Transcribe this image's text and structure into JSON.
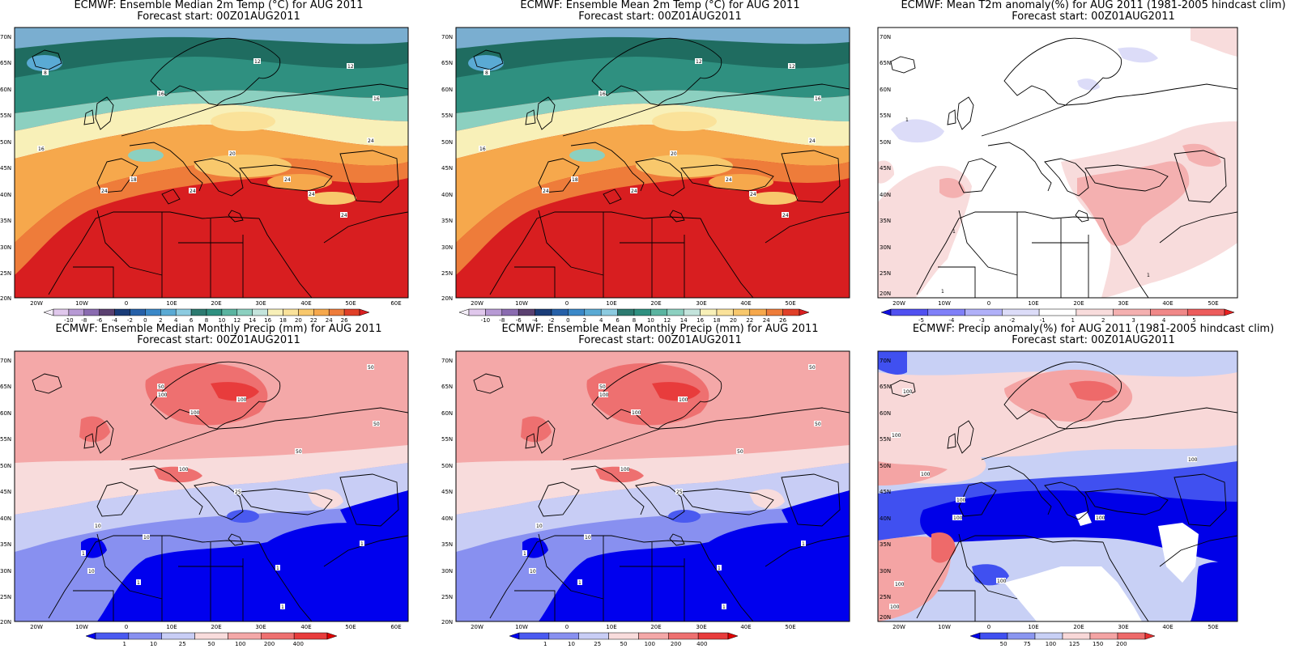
{
  "colors": {
    "temp_scale": [
      "#f4eef8",
      "#e0c8ec",
      "#b79ad4",
      "#8a6bb0",
      "#5a4070",
      "#1a3c78",
      "#2660a8",
      "#3a88c8",
      "#5aaad4",
      "#8ccbe0",
      "#2c7a70",
      "#2f9080",
      "#5ab4a0",
      "#8cd0c0",
      "#c4e4dc",
      "#f8f0b8",
      "#fae29a",
      "#f8c86c",
      "#f6a84c",
      "#ee7c3a",
      "#e04028",
      "#d81e20"
    ],
    "temp_anom_scale": [
      "#1010e0",
      "#5050f0",
      "#8080f8",
      "#b0b0f8",
      "#dcdcf8",
      "#ffffff",
      "#f8dcdc",
      "#f4b0b0",
      "#f08888",
      "#ec5c5c",
      "#e82020"
    ],
    "precip_scale": [
      "#0000ee",
      "#4a5af0",
      "#8890f0",
      "#c8cdf5",
      "#f8dcdc",
      "#f4a8a8",
      "#ee7070",
      "#e83c3c",
      "#e00000"
    ],
    "precip_anom_scale": [
      "#0000e8",
      "#4050f0",
      "#8a96f0",
      "#c8d0f5",
      "#f8d8d8",
      "#f4a4a4",
      "#ee6a6a",
      "#e83030"
    ],
    "land_outline": "#000000",
    "mask": "#ffffff"
  },
  "panels": [
    {
      "id": "median-temp",
      "title_line1": "ECMWF: Ensemble Median 2m Temp (°C) for AUG 2011",
      "title_line2": "Forecast start: 00Z01AUG2011",
      "lon_labels": [
        "20W",
        "10W",
        "0",
        "10E",
        "20E",
        "30E",
        "40E",
        "50E",
        "60E"
      ],
      "lat_labels": [
        "70N",
        "65N",
        "60N",
        "55N",
        "50N",
        "45N",
        "40N",
        "35N",
        "30N",
        "25N",
        "20N"
      ],
      "colorbar_labels": [
        "-10",
        "-8",
        "-6",
        "-4",
        "-2",
        "0",
        "2",
        "4",
        "6",
        "8",
        "10",
        "12",
        "14",
        "16",
        "18",
        "20",
        "22",
        "24",
        "26"
      ],
      "contour_labels": [
        "8",
        "12",
        "12",
        "16",
        "16",
        "16",
        "18",
        "20",
        "24",
        "24",
        "24",
        "24",
        "24",
        "24"
      ]
    },
    {
      "id": "mean-temp",
      "title_line1": "ECMWF: Ensemble Mean 2m Temp (°C) for AUG 2011",
      "title_line2": "Forecast start: 00Z01AUG2011",
      "lon_labels": [
        "20W",
        "10W",
        "0",
        "10E",
        "20E",
        "30E",
        "40E",
        "50E"
      ],
      "lat_labels": [
        "70N",
        "65N",
        "60N",
        "55N",
        "50N",
        "45N",
        "40N",
        "35N",
        "30N",
        "25N",
        "20N"
      ],
      "colorbar_labels": [
        "-10",
        "-8",
        "-6",
        "-4",
        "-2",
        "0",
        "2",
        "4",
        "6",
        "8",
        "10",
        "12",
        "14",
        "16",
        "18",
        "20",
        "22",
        "24",
        "26"
      ],
      "contour_labels": [
        "8",
        "12",
        "12",
        "16",
        "16",
        "16",
        "18",
        "20",
        "24",
        "24",
        "24",
        "24",
        "24",
        "24"
      ]
    },
    {
      "id": "temp-anomaly",
      "title_line1": "ECMWF: Mean T2m anomaly(%) for AUG 2011 (1981-2005 hindcast clim)",
      "title_line2": "Forecast start: 00Z01AUG2011",
      "lon_labels": [
        "20W",
        "10W",
        "0",
        "10E",
        "20E",
        "30E",
        "40E",
        "50E"
      ],
      "lat_labels": [
        "70N",
        "65N",
        "60N",
        "55N",
        "50N",
        "45N",
        "40N",
        "35N",
        "30N",
        "25N",
        "20N"
      ],
      "colorbar_labels": [
        "-5",
        "-4",
        "-3",
        "-2",
        "-1",
        "1",
        "2",
        "3",
        "4",
        "5"
      ],
      "contour_labels": [
        "1",
        "1",
        "1",
        "1"
      ]
    },
    {
      "id": "median-precip",
      "title_line1": "ECMWF: Ensemble Median Monthly Precip (mm) for AUG 2011",
      "title_line2": "Forecast start: 00Z01AUG2011",
      "lon_labels": [
        "20W",
        "10W",
        "0",
        "10E",
        "20E",
        "30E",
        "40E",
        "50E",
        "60E"
      ],
      "lat_labels": [
        "70N",
        "65N",
        "60N",
        "55N",
        "50N",
        "45N",
        "40N",
        "35N",
        "30N",
        "25N",
        "20N"
      ],
      "colorbar_labels": [
        "1",
        "10",
        "25",
        "50",
        "100",
        "200",
        "400"
      ],
      "contour_labels": [
        "50",
        "100",
        "50",
        "100",
        "100",
        "100",
        "50",
        "50",
        "25",
        "10",
        "10",
        "1",
        "1",
        "1",
        "1",
        "1",
        "10"
      ]
    },
    {
      "id": "mean-precip",
      "title_line1": "ECMWF: Ensemble Mean Monthly Precip (mm) for AUG 2011",
      "title_line2": "Forecast start: 00Z01AUG2011",
      "lon_labels": [
        "20W",
        "10W",
        "0",
        "10E",
        "20E",
        "30E",
        "40E",
        "50E"
      ],
      "lat_labels": [
        "70N",
        "65N",
        "60N",
        "55N",
        "50N",
        "45N",
        "40N",
        "35N",
        "30N",
        "25N",
        "20N"
      ],
      "colorbar_labels": [
        "1",
        "10",
        "25",
        "50",
        "100",
        "200",
        "400"
      ],
      "contour_labels": [
        "50",
        "100",
        "50",
        "100",
        "100",
        "100",
        "50",
        "50",
        "25",
        "10",
        "10",
        "1",
        "1",
        "1",
        "1",
        "1",
        "10"
      ]
    },
    {
      "id": "precip-anomaly",
      "title_line1": "ECMWF: Precip anomaly(%) for AUG 2011 (1981-2005 hindcast clim)",
      "title_line2": "Forecast start: 00Z01AUG2011",
      "lon_labels": [
        "20W",
        "10W",
        "0",
        "10E",
        "20E",
        "30E",
        "40E",
        "50E"
      ],
      "lat_labels": [
        "70N",
        "65N",
        "60N",
        "55N",
        "50N",
        "45N",
        "40N",
        "35N",
        "30N",
        "25N",
        "20N"
      ],
      "colorbar_labels": [
        "50",
        "75",
        "100",
        "125",
        "150",
        "200"
      ],
      "contour_labels": [
        "100",
        "100",
        "100",
        "100",
        "100",
        "100",
        "100",
        "100",
        "100",
        "100"
      ]
    }
  ]
}
